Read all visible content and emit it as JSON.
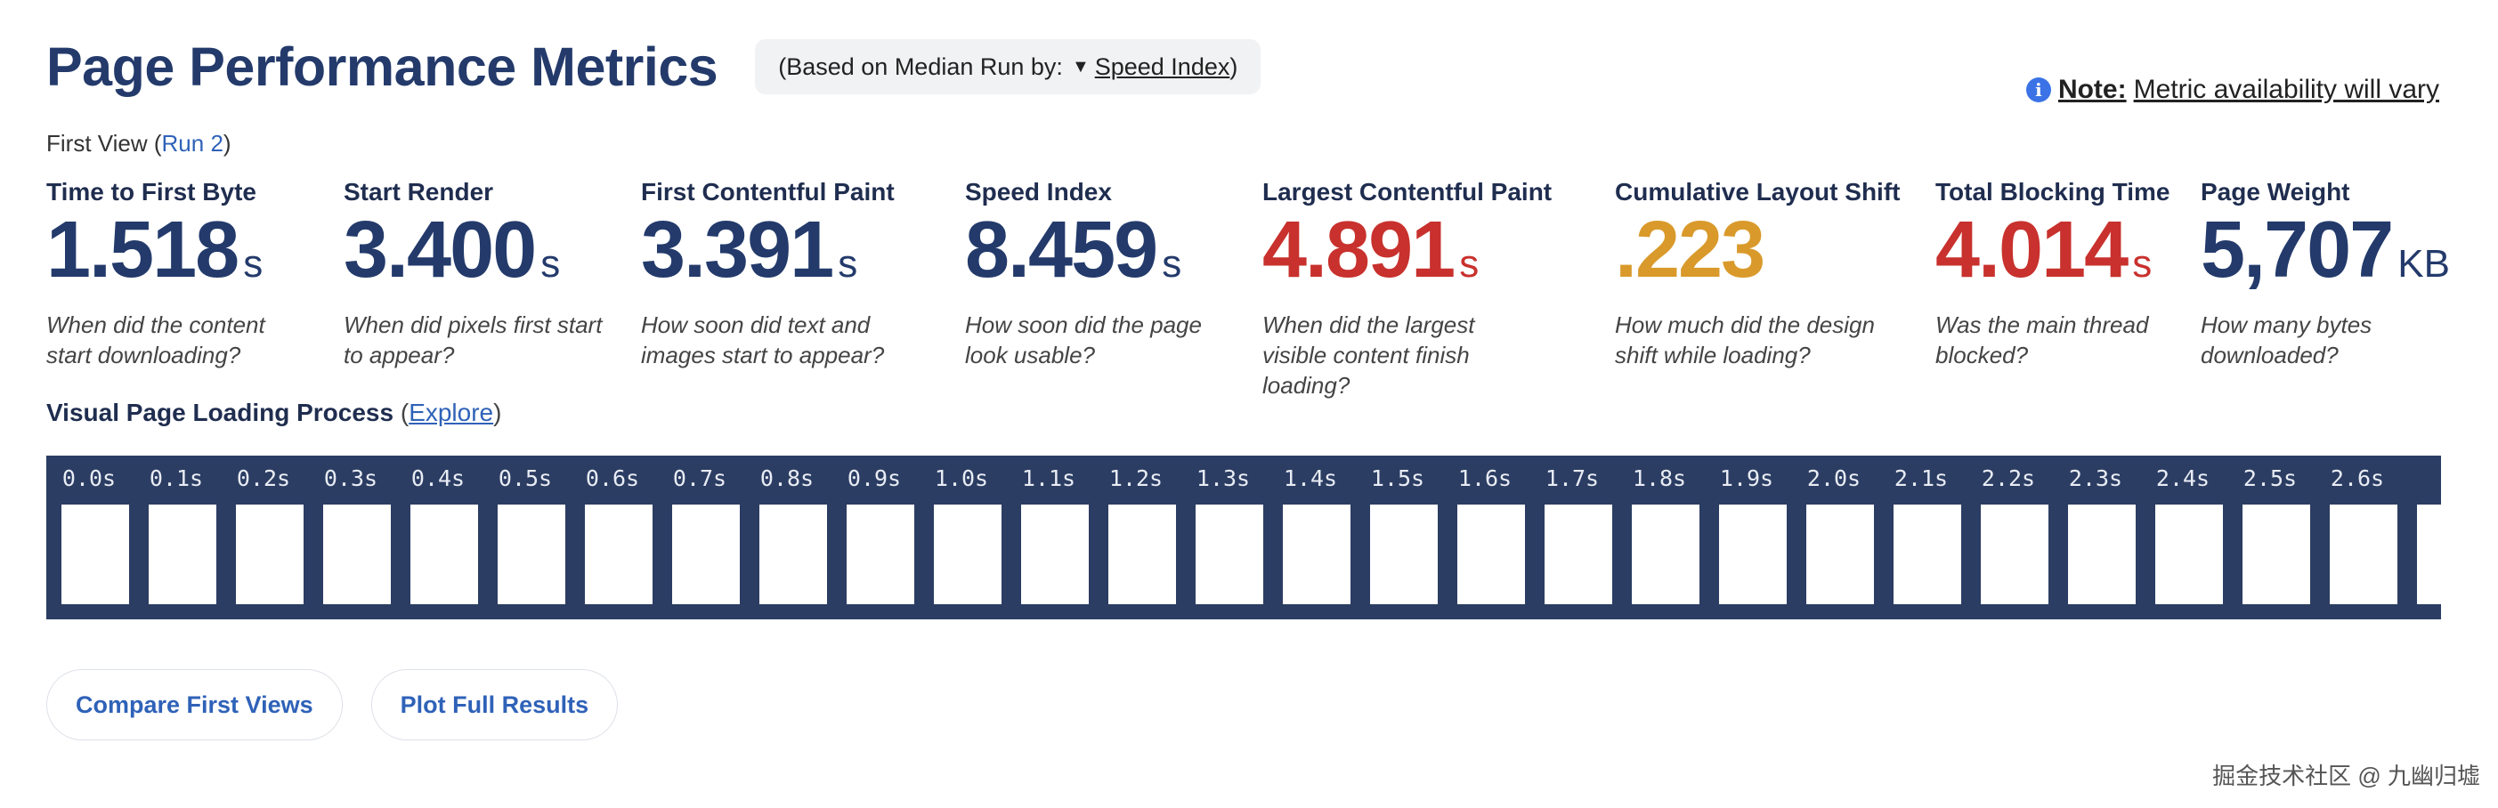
{
  "header": {
    "title": "Page Performance Metrics",
    "median_prefix": "(Based on Median Run by:",
    "median_arrow": "▼",
    "median_link": "Speed Index",
    "median_suffix": ")"
  },
  "note": {
    "icon": "info-icon",
    "icon_glyph": "i",
    "label": "Note:",
    "text": "Metric availability will vary"
  },
  "first_view": {
    "prefix": "First View (",
    "run_link": "Run 2",
    "suffix": ")"
  },
  "metrics": [
    {
      "label": "Time to First Byte",
      "value": "1.518",
      "unit": "s",
      "desc": "When did the content start downloading?",
      "color": "#233a6b"
    },
    {
      "label": "Start Render",
      "value": "3.400",
      "unit": "s",
      "desc": "When did pixels first start to appear?",
      "color": "#233a6b"
    },
    {
      "label": "First Contentful Paint",
      "value": "3.391",
      "unit": "s",
      "desc": "How soon did text and images start to appear?",
      "color": "#233a6b"
    },
    {
      "label": "Speed Index",
      "value": "8.459",
      "unit": "s",
      "desc": "How soon did the page look usable?",
      "color": "#233a6b"
    },
    {
      "label": "Largest Contentful Paint",
      "value": "4.891",
      "unit": "s",
      "desc": "When did the largest visible content finish loading?",
      "color": "#c8312d"
    },
    {
      "label": "Cumulative Layout Shift",
      "value": ".223",
      "unit": "",
      "desc": "How much did the design shift while loading?",
      "color": "#d99a2b"
    },
    {
      "label": "Total Blocking Time",
      "value": "4.014",
      "unit": "s",
      "desc": "Was the main thread blocked?",
      "color": "#c8312d"
    },
    {
      "label": "Page Weight",
      "value": "5,707",
      "unit": "KB",
      "desc": "How many bytes downloaded?",
      "color": "#233a6b"
    }
  ],
  "visual": {
    "title": "Visual Page Loading Process",
    "open_paren": " (",
    "explore": "Explore",
    "close_paren": ")"
  },
  "filmstrip": {
    "frames": [
      "0.0s",
      "0.1s",
      "0.2s",
      "0.3s",
      "0.4s",
      "0.5s",
      "0.6s",
      "0.7s",
      "0.8s",
      "0.9s",
      "1.0s",
      "1.1s",
      "1.2s",
      "1.3s",
      "1.4s",
      "1.5s",
      "1.6s",
      "1.7s",
      "1.8s",
      "1.9s",
      "2.0s",
      "2.1s",
      "2.2s",
      "2.3s",
      "2.4s",
      "2.5s",
      "2.6s",
      ""
    ]
  },
  "actions": {
    "compare": "Compare First Views",
    "plot": "Plot Full Results"
  },
  "watermark": "掘金技术社区 @ 九幽归墟"
}
